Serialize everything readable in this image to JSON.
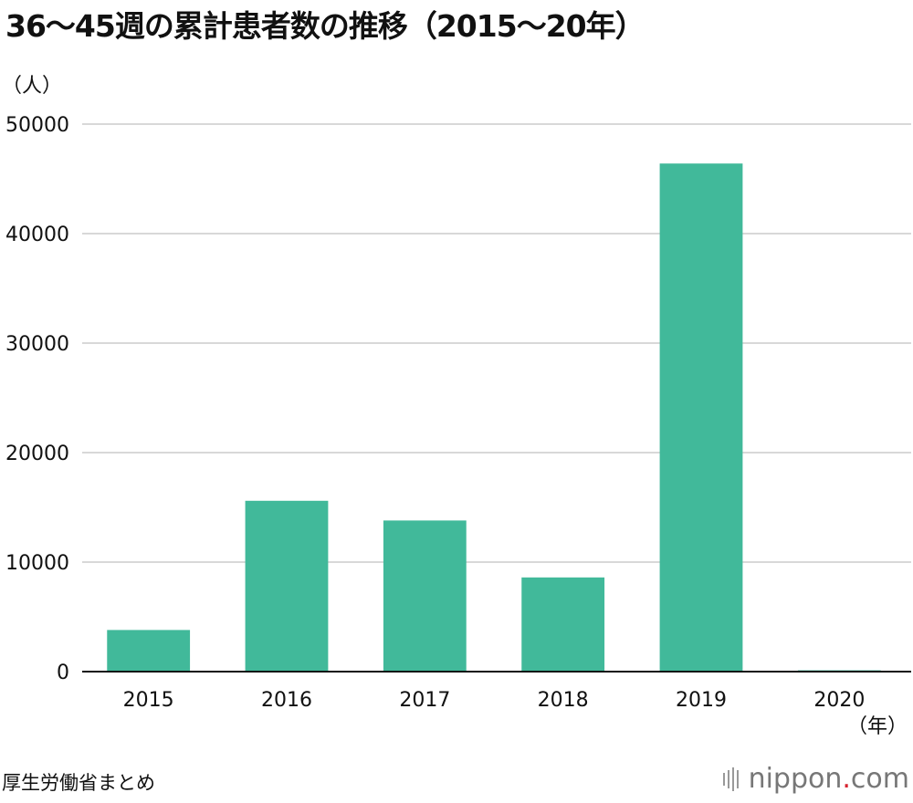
{
  "chart_data": {
    "type": "bar",
    "title": "36〜45週の累計患者数の推移（2015〜20年）",
    "ylabel": "（人）",
    "xlabel": "（年）",
    "categories": [
      "2015",
      "2016",
      "2017",
      "2018",
      "2019",
      "2020"
    ],
    "values": [
      3800,
      15600,
      13800,
      8600,
      46400,
      120
    ],
    "ylim": [
      0,
      50000
    ],
    "yticks": [
      "0",
      "10000",
      "20000",
      "30000",
      "40000",
      "50000"
    ],
    "grid": true,
    "bar_color": "#41b99a"
  },
  "source": "厚生労働省まとめ",
  "brand": {
    "name": "nippon",
    "dot": ".",
    "suffix": "com"
  }
}
